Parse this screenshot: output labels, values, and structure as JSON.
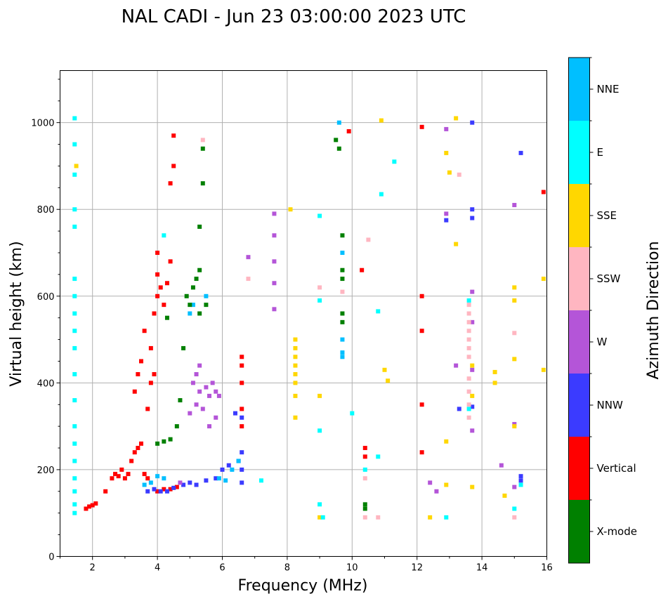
{
  "chart_data": {
    "type": "scatter",
    "title": "NAL CADI - Jun 23 03:00:00 2023 UTC",
    "xlabel": "Frequency (MHz)",
    "ylabel": "Virtual height (km)",
    "xlim": [
      1,
      16
    ],
    "ylim": [
      0,
      1120
    ],
    "xticks": [
      2,
      4,
      6,
      8,
      10,
      12,
      14,
      16
    ],
    "yticks": [
      0,
      200,
      400,
      600,
      800,
      1000
    ],
    "grid": true,
    "colorbar": {
      "title": "Azimuth Direction",
      "categories": [
        {
          "label": "X-mode",
          "color": "#008000"
        },
        {
          "label": "Vertical",
          "color": "#ff0000"
        },
        {
          "label": "NNW",
          "color": "#3b3bff"
        },
        {
          "label": "W",
          "color": "#b455d8"
        },
        {
          "label": "SSW",
          "color": "#ffb6c1"
        },
        {
          "label": "SSE",
          "color": "#ffd700"
        },
        {
          "label": "E",
          "color": "#00ffff"
        },
        {
          "label": "NNE",
          "color": "#00bfff"
        }
      ]
    },
    "series": [
      {
        "name": "Vertical",
        "color": "#ff0000",
        "points": [
          [
            1.8,
            110
          ],
          [
            1.9,
            115
          ],
          [
            2.0,
            118
          ],
          [
            2.1,
            122
          ],
          [
            2.4,
            150
          ],
          [
            2.6,
            180
          ],
          [
            2.7,
            190
          ],
          [
            2.8,
            185
          ],
          [
            2.9,
            200
          ],
          [
            3.0,
            180
          ],
          [
            3.1,
            190
          ],
          [
            3.2,
            220
          ],
          [
            3.3,
            240
          ],
          [
            3.4,
            250
          ],
          [
            3.5,
            260
          ],
          [
            3.6,
            190
          ],
          [
            3.7,
            180
          ],
          [
            3.3,
            380
          ],
          [
            3.4,
            420
          ],
          [
            3.5,
            450
          ],
          [
            3.6,
            520
          ],
          [
            3.7,
            340
          ],
          [
            3.8,
            400
          ],
          [
            3.8,
            480
          ],
          [
            3.9,
            560
          ],
          [
            4.0,
            600
          ],
          [
            4.0,
            650
          ],
          [
            4.0,
            700
          ],
          [
            4.1,
            620
          ],
          [
            4.2,
            580
          ],
          [
            4.3,
            630
          ],
          [
            4.4,
            680
          ],
          [
            4.4,
            860
          ],
          [
            4.5,
            900
          ],
          [
            4.5,
            970
          ],
          [
            3.9,
            420
          ],
          [
            4.0,
            150
          ],
          [
            4.2,
            155
          ],
          [
            4.4,
            155
          ],
          [
            4.6,
            160
          ],
          [
            6.6,
            300
          ],
          [
            6.6,
            340
          ],
          [
            6.6,
            400
          ],
          [
            6.6,
            440
          ],
          [
            6.6,
            460
          ],
          [
            12.15,
            240
          ],
          [
            12.15,
            350
          ],
          [
            12.15,
            520
          ],
          [
            12.15,
            600
          ],
          [
            12.15,
            990
          ],
          [
            10.4,
            250
          ],
          [
            10.4,
            230
          ],
          [
            15.9,
            840
          ],
          [
            10.3,
            660
          ],
          [
            9.9,
            980
          ]
        ]
      },
      {
        "name": "NNW",
        "color": "#3b3bff",
        "points": [
          [
            3.7,
            150
          ],
          [
            3.9,
            155
          ],
          [
            4.1,
            150
          ],
          [
            4.3,
            150
          ],
          [
            4.5,
            158
          ],
          [
            4.8,
            165
          ],
          [
            5.0,
            170
          ],
          [
            5.2,
            165
          ],
          [
            5.5,
            175
          ],
          [
            5.8,
            180
          ],
          [
            6.0,
            200
          ],
          [
            6.2,
            210
          ],
          [
            6.5,
            220
          ],
          [
            6.6,
            240
          ],
          [
            6.6,
            200
          ],
          [
            6.6,
            170
          ],
          [
            6.4,
            330
          ],
          [
            6.6,
            320
          ],
          [
            13.7,
            345
          ],
          [
            13.7,
            1000
          ],
          [
            13.7,
            780
          ],
          [
            13.7,
            800
          ],
          [
            15.2,
            185
          ],
          [
            15.2,
            175
          ],
          [
            15.2,
            930
          ],
          [
            12.9,
            775
          ],
          [
            13.3,
            340
          ]
        ]
      },
      {
        "name": "W",
        "color": "#b455d8",
        "points": [
          [
            5.1,
            400
          ],
          [
            5.2,
            420
          ],
          [
            5.3,
            380
          ],
          [
            5.5,
            390
          ],
          [
            5.6,
            370
          ],
          [
            5.7,
            400
          ],
          [
            5.8,
            380
          ],
          [
            5.4,
            340
          ],
          [
            5.2,
            350
          ],
          [
            5.0,
            330
          ],
          [
            5.6,
            300
          ],
          [
            5.8,
            320
          ],
          [
            5.9,
            370
          ],
          [
            5.3,
            440
          ],
          [
            4.7,
            170
          ],
          [
            7.6,
            790
          ],
          [
            7.6,
            740
          ],
          [
            7.6,
            680
          ],
          [
            7.6,
            630
          ],
          [
            7.6,
            570
          ],
          [
            6.8,
            690
          ],
          [
            13.7,
            610
          ],
          [
            13.7,
            540
          ],
          [
            13.7,
            430
          ],
          [
            13.7,
            290
          ],
          [
            14.6,
            210
          ],
          [
            15.0,
            160
          ],
          [
            15.0,
            305
          ],
          [
            15.0,
            810
          ],
          [
            12.9,
            985
          ],
          [
            12.9,
            790
          ],
          [
            13.2,
            440
          ],
          [
            12.6,
            150
          ],
          [
            12.4,
            170
          ]
        ]
      },
      {
        "name": "SSW",
        "color": "#ffb6c1",
        "points": [
          [
            13.6,
            580
          ],
          [
            13.6,
            560
          ],
          [
            13.6,
            540
          ],
          [
            13.6,
            520
          ],
          [
            13.6,
            500
          ],
          [
            13.6,
            480
          ],
          [
            13.6,
            460
          ],
          [
            13.6,
            410
          ],
          [
            13.6,
            380
          ],
          [
            13.6,
            350
          ],
          [
            13.6,
            320
          ],
          [
            13.3,
            880
          ],
          [
            15.0,
            90
          ],
          [
            15.0,
            515
          ],
          [
            10.4,
            180
          ],
          [
            10.4,
            90
          ],
          [
            10.8,
            90
          ],
          [
            10.5,
            730
          ],
          [
            9.7,
            610
          ],
          [
            9.0,
            620
          ],
          [
            6.8,
            640
          ],
          [
            5.4,
            960
          ]
        ]
      },
      {
        "name": "SSE",
        "color": "#ffd700",
        "points": [
          [
            8.25,
            500
          ],
          [
            8.25,
            480
          ],
          [
            8.25,
            460
          ],
          [
            8.25,
            440
          ],
          [
            8.25,
            420
          ],
          [
            8.25,
            400
          ],
          [
            8.25,
            370
          ],
          [
            8.25,
            320
          ],
          [
            8.1,
            800
          ],
          [
            12.4,
            90
          ],
          [
            12.9,
            165
          ],
          [
            12.9,
            265
          ],
          [
            12.9,
            930
          ],
          [
            13.0,
            885
          ],
          [
            13.2,
            720
          ],
          [
            13.2,
            1010
          ],
          [
            13.7,
            160
          ],
          [
            13.7,
            370
          ],
          [
            13.7,
            440
          ],
          [
            14.4,
            425
          ],
          [
            14.4,
            400
          ],
          [
            14.7,
            140
          ],
          [
            15.0,
            300
          ],
          [
            15.0,
            455
          ],
          [
            15.0,
            590
          ],
          [
            15.0,
            620
          ],
          [
            15.9,
            640
          ],
          [
            15.9,
            430
          ],
          [
            10.9,
            1005
          ],
          [
            11.0,
            430
          ],
          [
            11.1,
            405
          ],
          [
            9.0,
            370
          ],
          [
            9.0,
            90
          ],
          [
            1.5,
            900
          ]
        ]
      },
      {
        "name": "E",
        "color": "#00ffff",
        "points": [
          [
            1.45,
            1010
          ],
          [
            1.45,
            950
          ],
          [
            1.45,
            880
          ],
          [
            1.45,
            800
          ],
          [
            1.45,
            760
          ],
          [
            1.45,
            640
          ],
          [
            1.45,
            600
          ],
          [
            1.45,
            560
          ],
          [
            1.45,
            520
          ],
          [
            1.45,
            480
          ],
          [
            1.45,
            420
          ],
          [
            1.45,
            360
          ],
          [
            1.45,
            300
          ],
          [
            1.45,
            260
          ],
          [
            1.45,
            220
          ],
          [
            1.45,
            180
          ],
          [
            1.45,
            150
          ],
          [
            1.45,
            120
          ],
          [
            1.45,
            100
          ],
          [
            9.0,
            785
          ],
          [
            9.0,
            590
          ],
          [
            9.0,
            290
          ],
          [
            9.0,
            120
          ],
          [
            9.1,
            90
          ],
          [
            10.0,
            330
          ],
          [
            10.4,
            200
          ],
          [
            10.9,
            835
          ],
          [
            10.8,
            565
          ],
          [
            10.8,
            230
          ],
          [
            11.3,
            910
          ],
          [
            12.9,
            90
          ],
          [
            13.6,
            590
          ],
          [
            13.6,
            340
          ],
          [
            15.2,
            165
          ],
          [
            15.0,
            110
          ],
          [
            7.2,
            175
          ],
          [
            4.2,
            740
          ]
        ]
      },
      {
        "name": "NNE",
        "color": "#00bfff",
        "points": [
          [
            3.6,
            165
          ],
          [
            3.8,
            170
          ],
          [
            4.0,
            185
          ],
          [
            4.2,
            180
          ],
          [
            5.0,
            560
          ],
          [
            5.1,
            580
          ],
          [
            5.5,
            600
          ],
          [
            9.7,
            500
          ],
          [
            9.7,
            470
          ],
          [
            9.7,
            460
          ],
          [
            9.7,
            700
          ],
          [
            9.6,
            1000
          ],
          [
            6.3,
            200
          ],
          [
            6.5,
            220
          ],
          [
            5.9,
            180
          ],
          [
            6.1,
            175
          ]
        ]
      },
      {
        "name": "X-mode",
        "color": "#008000",
        "points": [
          [
            4.0,
            260
          ],
          [
            4.2,
            265
          ],
          [
            4.4,
            270
          ],
          [
            4.6,
            300
          ],
          [
            4.7,
            360
          ],
          [
            4.8,
            480
          ],
          [
            4.9,
            600
          ],
          [
            5.0,
            580
          ],
          [
            5.1,
            620
          ],
          [
            5.2,
            640
          ],
          [
            5.3,
            660
          ],
          [
            5.3,
            560
          ],
          [
            5.3,
            760
          ],
          [
            5.4,
            860
          ],
          [
            5.4,
            940
          ],
          [
            5.5,
            580
          ],
          [
            9.7,
            560
          ],
          [
            9.7,
            540
          ],
          [
            9.7,
            640
          ],
          [
            9.7,
            660
          ],
          [
            9.7,
            740
          ],
          [
            9.5,
            960
          ],
          [
            9.6,
            940
          ],
          [
            10.4,
            120
          ],
          [
            10.4,
            110
          ],
          [
            4.3,
            550
          ]
        ]
      }
    ]
  }
}
